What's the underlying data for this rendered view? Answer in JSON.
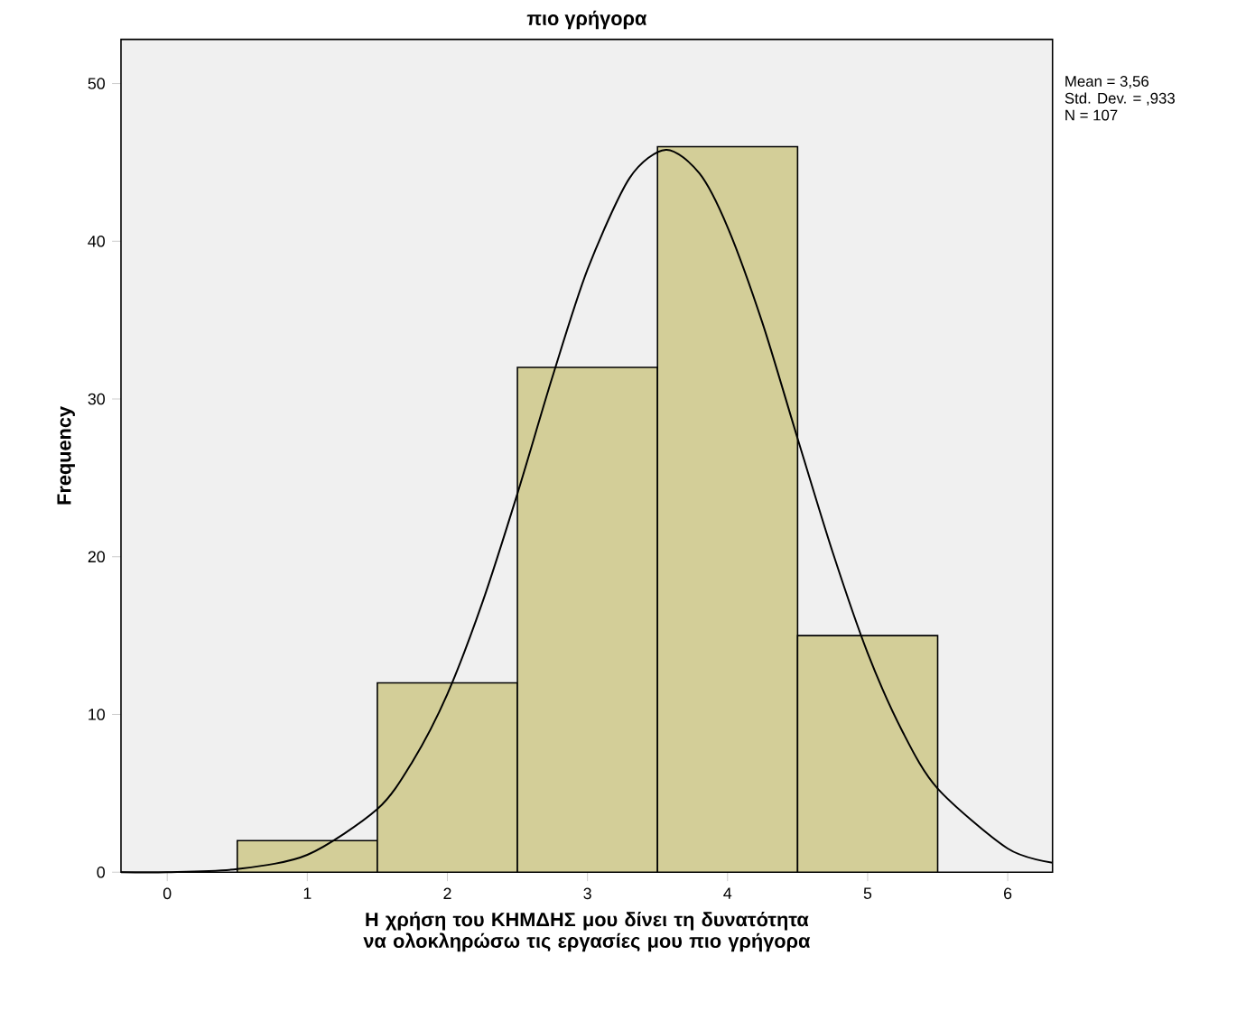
{
  "chart_data": {
    "type": "histogram",
    "title": "πιο γρήγορα",
    "xlabel": "Η χρήση του ΚΗΜΔΗΣ μου δίνει τη δυνατότητα να ολοκληρώσω τις εργασίες μου πιο γρήγορα",
    "ylabel": "Frequency",
    "bins": [
      0.5,
      1.5,
      2.5,
      3.5,
      4.5,
      5.5
    ],
    "values": [
      2,
      12,
      32,
      46,
      15
    ],
    "color": "#d3ce98",
    "series": [
      {
        "type": "line",
        "color": "#000000",
        "x": [
          -0.33,
          0,
          0.5,
          1,
          1.5,
          1.75,
          2,
          2.25,
          2.5,
          2.75,
          3,
          3.3,
          3.56,
          3.8,
          4,
          4.25,
          4.5,
          4.75,
          5,
          5.25,
          5.5,
          6,
          6.32
        ],
        "values": [
          0,
          0,
          0.2,
          1.1,
          4.0,
          7.0,
          11.3,
          17.1,
          24.0,
          31.4,
          38.2,
          44.0,
          45.8,
          44.3,
          40.9,
          34.8,
          27.5,
          20.3,
          13.9,
          8.9,
          5.3,
          1.5,
          0.6
        ]
      }
    ],
    "xlim": [
      -0.33,
      6.32
    ],
    "ylim": [
      0,
      52.8
    ],
    "xticks": [
      0,
      1,
      2,
      3,
      4,
      5,
      6
    ],
    "yticks": [
      0,
      10,
      20,
      30,
      40,
      50
    ],
    "grid": false,
    "annotations": [
      "Mean = 3,56",
      "Std. Dev. = ,933",
      "N = 107"
    ]
  }
}
